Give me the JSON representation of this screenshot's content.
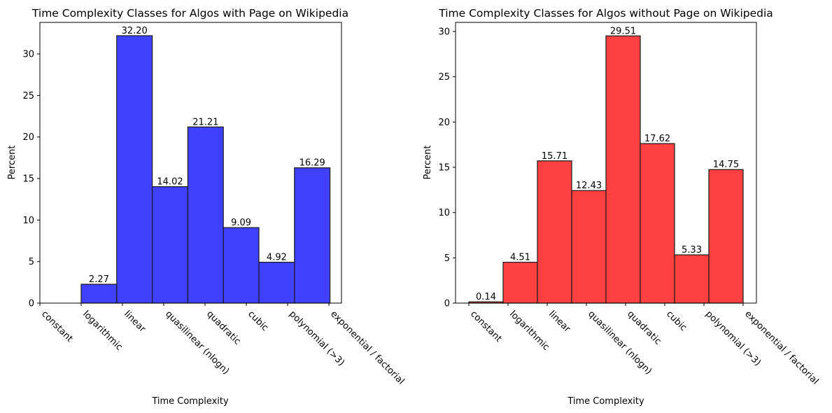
{
  "chart_data": [
    {
      "type": "bar",
      "title": "Time Complexity Classes for Algos with Page on Wikipedia",
      "xlabel": "Time Complexity",
      "ylabel": "Percent",
      "categories": [
        "constant",
        "logarithmic",
        "linear",
        "quasilinear (nlogn)",
        "quadratic",
        "cubic",
        "polynomial (>3)",
        "exponential / factorial"
      ],
      "values": [
        0,
        2.27,
        32.2,
        14.02,
        21.21,
        9.09,
        4.92,
        16.29
      ],
      "data_labels": [
        "",
        "2.27",
        "32.20",
        "14.02",
        "21.21",
        "9.09",
        "4.92",
        "16.29"
      ],
      "ylim": [
        0,
        33.8
      ],
      "yticks": [
        0,
        5,
        10,
        15,
        20,
        25,
        30
      ],
      "color": "#4040ff",
      "grid": false
    },
    {
      "type": "bar",
      "title": "Time Complexity Classes for Algos without Page on Wikipedia",
      "xlabel": "Time Complexity",
      "ylabel": "Percent",
      "categories": [
        "constant",
        "logarithmic",
        "linear",
        "quasilinear (nlogn)",
        "quadratic",
        "cubic",
        "polynomial (>3)",
        "exponential / factorial"
      ],
      "values": [
        0.14,
        4.51,
        15.71,
        12.43,
        29.51,
        17.62,
        5.33,
        14.75
      ],
      "data_labels": [
        "0.14",
        "4.51",
        "15.71",
        "12.43",
        "29.51",
        "17.62",
        "5.33",
        "14.75"
      ],
      "ylim": [
        0,
        31.0
      ],
      "yticks": [
        0,
        5,
        10,
        15,
        20,
        25,
        30
      ],
      "color": "#ff4040",
      "grid": false
    }
  ]
}
